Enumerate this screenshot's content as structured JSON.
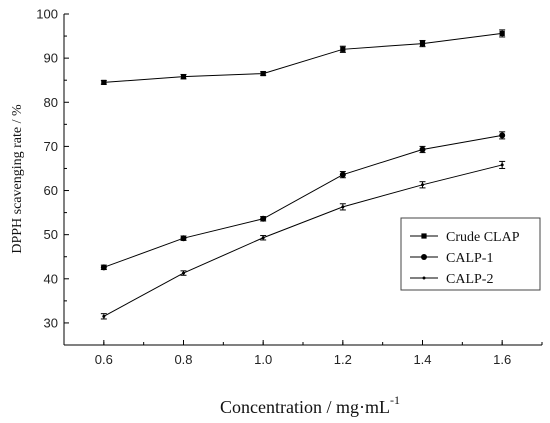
{
  "chart_data": {
    "type": "line",
    "xlabel": "Concentration / mg·mL",
    "xlabel_sup": "-1",
    "ylabel": "DPPH  scavenging rate  / %",
    "xlim": [
      0.5,
      1.7
    ],
    "ylim": [
      25,
      100
    ],
    "x_ticks": [
      "0.6",
      "0.8",
      "1.0",
      "1.2",
      "1.4",
      "1.6"
    ],
    "y_ticks": [
      "30",
      "40",
      "50",
      "60",
      "70",
      "80",
      "90",
      "100"
    ],
    "grid": false,
    "legend_position": "right",
    "x": [
      0.6,
      0.8,
      1.0,
      1.2,
      1.4,
      1.6
    ],
    "series": [
      {
        "name": "Crude CLAP",
        "marker": "square",
        "values": [
          84.5,
          85.8,
          86.5,
          92.0,
          93.3,
          95.6
        ],
        "errors": [
          0.4,
          0.5,
          0.4,
          0.7,
          0.7,
          0.8
        ]
      },
      {
        "name": "CALP-1",
        "marker": "circle",
        "values": [
          42.6,
          49.2,
          53.6,
          63.6,
          69.3,
          72.5
        ],
        "errors": [
          0.5,
          0.5,
          0.5,
          0.7,
          0.7,
          0.8
        ]
      },
      {
        "name": "CALP-2",
        "marker": "dot",
        "values": [
          31.5,
          41.3,
          49.3,
          56.3,
          61.3,
          65.8
        ],
        "errors": [
          0.6,
          0.5,
          0.5,
          0.7,
          0.7,
          0.8
        ]
      }
    ]
  }
}
